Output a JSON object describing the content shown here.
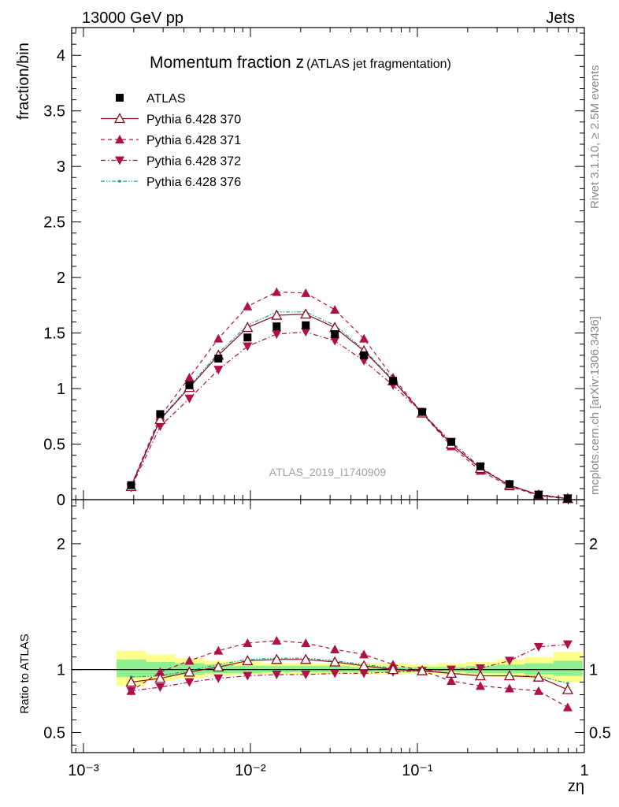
{
  "header": {
    "left": "13000 GeV pp",
    "right": "Jets"
  },
  "side_text": {
    "rivet": "Rivet 3.1.10, ≥ 2.5M events",
    "mcplots": "mcplots.cern.ch [arXiv:1306.3436]"
  },
  "watermark": "ATLAS_2019_I1740909",
  "chart_data": [
    {
      "type": "scatter",
      "title": "Momentum fraction z",
      "subtitle": "(ATLAS jet fragmentation)",
      "ylabel": "fraction/bin",
      "xlabel": "zη",
      "xscale": "log",
      "xlim": [
        0.00085,
        1.0
      ],
      "ylim": [
        0,
        4.25
      ],
      "y_ticks": [
        0,
        0.5,
        1,
        1.5,
        2,
        2.5,
        3,
        3.5,
        4
      ],
      "y_tick_labels": [
        "0",
        "0.5",
        "1",
        "1.5",
        "2",
        "2.5",
        "3",
        "3.5",
        "4"
      ],
      "x": [
        0.00193,
        0.00288,
        0.00431,
        0.00643,
        0.00961,
        0.01436,
        0.02145,
        0.03204,
        0.04785,
        0.0715,
        0.1068,
        0.1596,
        0.2384,
        0.3562,
        0.532,
        0.795
      ],
      "series": [
        {
          "name": "ATLAS",
          "color": "#000000",
          "marker": "square",
          "line": "none",
          "values": [
            0.13,
            0.77,
            1.03,
            1.27,
            1.46,
            1.56,
            1.57,
            1.49,
            1.3,
            1.07,
            0.79,
            0.52,
            0.3,
            0.14,
            0.045,
            0.01
          ]
        },
        {
          "name": "Pythia 6.428 370",
          "color": "#8b0a1e",
          "marker": "triangle-up-open",
          "line": "solid",
          "values": [
            0.118,
            0.72,
            1.01,
            1.3,
            1.55,
            1.66,
            1.67,
            1.55,
            1.34,
            1.07,
            0.78,
            0.5,
            0.28,
            0.13,
            0.042,
            0.009
          ]
        },
        {
          "name": "Pythia 6.428 371",
          "color": "#b0104a",
          "marker": "triangle-up",
          "line": "dashed",
          "values": [
            0.125,
            0.75,
            1.1,
            1.45,
            1.74,
            1.87,
            1.86,
            1.71,
            1.45,
            1.1,
            0.78,
            0.48,
            0.26,
            0.12,
            0.037,
            0.007
          ]
        },
        {
          "name": "Pythia 6.428 372",
          "color": "#b0104a",
          "marker": "triangle-down",
          "line": "dashdot",
          "values": [
            0.108,
            0.66,
            0.91,
            1.17,
            1.38,
            1.49,
            1.51,
            1.43,
            1.25,
            1.03,
            0.78,
            0.52,
            0.29,
            0.13,
            0.045,
            0.012
          ]
        },
        {
          "name": "Pythia 6.428 376",
          "color": "#1a9e8a",
          "marker": "dot",
          "line": "dashdotdot",
          "values": [
            0.123,
            0.73,
            1.02,
            1.32,
            1.57,
            1.69,
            1.69,
            1.57,
            1.35,
            1.08,
            0.78,
            0.5,
            0.28,
            0.13,
            0.042,
            0.009
          ]
        }
      ]
    },
    {
      "type": "line",
      "ylabel": "Ratio to ATLAS",
      "xlabel": "zη",
      "xscale": "log",
      "xlim": [
        0.00085,
        1.0
      ],
      "ylim": [
        0.34,
        2.35
      ],
      "y_ticks": [
        0.5,
        1,
        2
      ],
      "y_tick_labels": [
        "0.5",
        "1",
        "2"
      ],
      "x_tick_labels": [
        "10⁻³",
        "10⁻²",
        "10⁻¹",
        "1"
      ],
      "reference_line": 1,
      "uncertainty_bands": {
        "edges": [
          0.00158,
          0.00237,
          0.00354,
          0.00529,
          0.0079,
          0.0118,
          0.0176,
          0.0263,
          0.0393,
          0.0587,
          0.0877,
          0.131,
          0.196,
          0.293,
          0.437,
          0.653,
          0.976
        ],
        "yellow": [
          [
            0.87,
            1.15
          ],
          [
            0.91,
            1.12
          ],
          [
            0.93,
            1.09
          ],
          [
            0.95,
            1.07
          ],
          [
            0.96,
            1.06
          ],
          [
            0.96,
            1.05
          ],
          [
            0.96,
            1.05
          ],
          [
            0.96,
            1.05
          ],
          [
            0.96,
            1.05
          ],
          [
            0.96,
            1.05
          ],
          [
            0.97,
            1.04
          ],
          [
            0.96,
            1.05
          ],
          [
            0.95,
            1.06
          ],
          [
            0.94,
            1.08
          ],
          [
            0.93,
            1.1
          ],
          [
            0.9,
            1.14
          ]
        ],
        "green": [
          [
            0.94,
            1.08
          ],
          [
            0.95,
            1.06
          ],
          [
            0.96,
            1.05
          ],
          [
            0.97,
            1.04
          ],
          [
            0.97,
            1.03
          ],
          [
            0.98,
            1.03
          ],
          [
            0.98,
            1.03
          ],
          [
            0.98,
            1.03
          ],
          [
            0.98,
            1.02
          ],
          [
            0.98,
            1.02
          ],
          [
            0.98,
            1.02
          ],
          [
            0.98,
            1.02
          ],
          [
            0.97,
            1.03
          ],
          [
            0.97,
            1.04
          ],
          [
            0.96,
            1.05
          ],
          [
            0.95,
            1.07
          ]
        ]
      },
      "series": [
        {
          "name": "Pythia 6.428 370",
          "values": [
            0.9,
            0.93,
            0.98,
            1.02,
            1.07,
            1.08,
            1.08,
            1.06,
            1.03,
            1.0,
            0.99,
            0.97,
            0.95,
            0.95,
            0.94,
            0.84
          ]
        },
        {
          "name": "Pythia 6.428 371",
          "values": [
            0.83,
            0.98,
            1.07,
            1.15,
            1.21,
            1.23,
            1.21,
            1.16,
            1.12,
            1.04,
            0.99,
            0.91,
            0.87,
            0.85,
            0.83,
            0.7
          ]
        },
        {
          "name": "Pythia 6.428 372",
          "values": [
            0.83,
            0.86,
            0.9,
            0.93,
            0.95,
            0.96,
            0.96,
            0.97,
            0.97,
            0.98,
            0.99,
            1.0,
            1.01,
            1.07,
            1.18,
            1.2
          ]
        },
        {
          "name": "Pythia 6.428 376",
          "values": [
            0.94,
            0.95,
            0.99,
            1.04,
            1.08,
            1.09,
            1.09,
            1.07,
            1.04,
            1.01,
            0.99,
            0.97,
            0.95,
            0.95,
            0.95,
            0.89
          ]
        }
      ]
    }
  ]
}
